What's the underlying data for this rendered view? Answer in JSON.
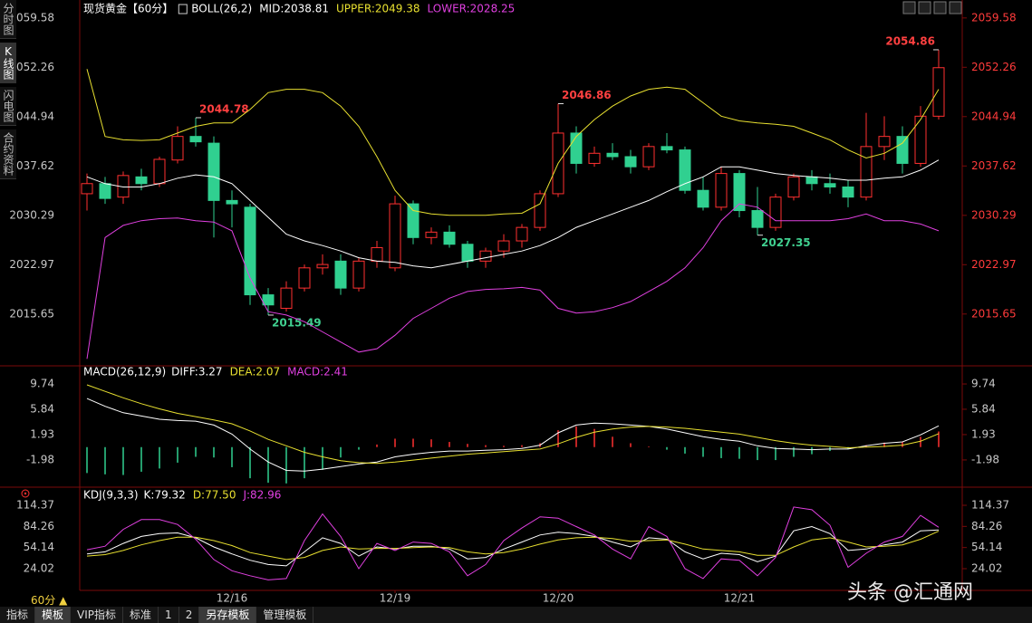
{
  "sidebar": [
    "分时图",
    "K线图",
    "闪电图",
    "合约资料"
  ],
  "period": "60分 ▲",
  "toolbar": [
    "指标",
    "模板",
    "VIP指标",
    "标准",
    "1",
    "2",
    "另存模板",
    "管理模板"
  ],
  "watermark": "头条 @汇通网",
  "chart_data": [
    {
      "type": "candlestick",
      "title": "现货黄金【60分】",
      "indicator": "BOLL(26,2)",
      "categories": [
        null,
        null,
        null,
        null,
        null,
        null,
        null,
        null,
        "12/16",
        null,
        null,
        null,
        null,
        null,
        null,
        null,
        null,
        "12/19",
        null,
        null,
        null,
        null,
        null,
        null,
        null,
        null,
        "12/20",
        null,
        null,
        null,
        null,
        null,
        null,
        null,
        null,
        null,
        "12/21",
        null,
        null,
        null,
        null,
        null,
        null,
        null,
        null,
        null,
        null,
        null
      ],
      "open": [
        2033.5,
        2035.0,
        2033.0,
        2036.0,
        2035.0,
        2038.5,
        2042.0,
        2041.0,
        2032.5,
        2031.5,
        2018.5,
        2016.5,
        2019.5,
        2022.5,
        2023.5,
        2019.5,
        2023.5,
        2022.5,
        2032.0,
        2027.0,
        2027.8,
        2026.0,
        2023.5,
        2025.0,
        2026.5,
        2028.5,
        2033.5,
        2042.5,
        2038.0,
        2039.5,
        2039.0,
        2037.5,
        2040.5,
        2040.0,
        2034.0,
        2031.5,
        2036.5,
        2031.0,
        2028.5,
        2033.0,
        2036.0,
        2035.0,
        2034.5,
        2033.0,
        2040.5,
        2042.0,
        2038.0,
        2045.0
      ],
      "high": [
        2036.5,
        2036.0,
        2036.8,
        2037.2,
        2039.0,
        2043.5,
        2044.78,
        2042.0,
        2034.0,
        2032.0,
        2019.5,
        2020.5,
        2023.0,
        2024.5,
        2024.5,
        2024.0,
        2026.5,
        2033.2,
        2032.5,
        2028.5,
        2028.8,
        2026.5,
        2025.5,
        2027.5,
        2029.0,
        2034.0,
        2046.86,
        2043.5,
        2040.5,
        2041.0,
        2040.0,
        2041.0,
        2042.5,
        2040.5,
        2036.0,
        2037.5,
        2037.0,
        2034.5,
        2033.5,
        2036.5,
        2037.0,
        2036.5,
        2035.5,
        2045.5,
        2045.0,
        2043.5,
        2046.5,
        2054.86
      ],
      "low": [
        2031.0,
        2032.0,
        2032.0,
        2034.0,
        2034.5,
        2038.0,
        2040.5,
        2027.0,
        2028.5,
        2017.0,
        2015.49,
        2016.0,
        2019.0,
        2021.5,
        2018.5,
        2019.0,
        2022.5,
        2022.0,
        2026.0,
        2026.0,
        2025.5,
        2022.5,
        2022.5,
        2024.0,
        2025.5,
        2028.0,
        2033.0,
        2036.5,
        2037.5,
        2038.5,
        2036.5,
        2037.0,
        2039.5,
        2033.5,
        2031.0,
        2031.0,
        2030.0,
        2027.35,
        2028.0,
        2032.5,
        2034.0,
        2033.5,
        2031.5,
        2032.5,
        2038.5,
        2036.5,
        2037.5,
        2044.5
      ],
      "close": [
        2035.0,
        2032.8,
        2036.2,
        2035.0,
        2038.6,
        2042.0,
        2041.2,
        2032.5,
        2032.0,
        2018.5,
        2017.0,
        2019.5,
        2022.5,
        2023.0,
        2019.5,
        2023.5,
        2025.5,
        2032.0,
        2027.0,
        2027.8,
        2026.0,
        2023.5,
        2025.0,
        2026.5,
        2028.5,
        2033.5,
        2042.5,
        2038.0,
        2039.5,
        2039.0,
        2037.5,
        2040.5,
        2040.0,
        2034.0,
        2031.5,
        2036.5,
        2031.0,
        2028.5,
        2033.0,
        2036.0,
        2035.0,
        2034.5,
        2033.0,
        2040.5,
        2042.0,
        2038.0,
        2045.0,
        2052.2
      ],
      "up_color": "#ff3030",
      "down_color": "#30d090",
      "series": [
        {
          "name": "MID:2038.81",
          "color": "#ffffff",
          "values": [
            2036.0,
            2035.0,
            2034.5,
            2034.5,
            2035.0,
            2035.8,
            2036.3,
            2036.0,
            2035.0,
            2032.5,
            2030.0,
            2027.5,
            2026.5,
            2025.8,
            2025.0,
            2024.0,
            2023.5,
            2023.3,
            2022.8,
            2022.5,
            2023.0,
            2023.5,
            2024.0,
            2024.5,
            2025.0,
            2025.8,
            2027.0,
            2028.5,
            2029.5,
            2030.5,
            2031.5,
            2032.5,
            2033.8,
            2035.0,
            2036.0,
            2037.5,
            2037.5,
            2037.0,
            2036.5,
            2036.2,
            2036.0,
            2035.8,
            2035.5,
            2035.5,
            2035.8,
            2036.0,
            2037.0,
            2038.5
          ]
        },
        {
          "name": "UPPER:2049.38",
          "color": "#e8e030",
          "values": [
            2052.0,
            2042.0,
            2041.5,
            2041.4,
            2041.5,
            2042.5,
            2043.5,
            2044.0,
            2044.0,
            2046.0,
            2048.5,
            2049.0,
            2049.0,
            2048.5,
            2046.5,
            2043.5,
            2039.0,
            2034.0,
            2031.0,
            2030.5,
            2030.3,
            2030.3,
            2030.3,
            2030.5,
            2030.6,
            2032.0,
            2038.0,
            2042.0,
            2044.5,
            2046.5,
            2048.0,
            2049.0,
            2049.3,
            2049.0,
            2047.0,
            2045.0,
            2044.3,
            2044.0,
            2043.8,
            2043.5,
            2042.5,
            2041.5,
            2040.0,
            2038.8,
            2039.5,
            2041.0,
            2044.5,
            2049.0
          ]
        },
        {
          "name": "LOWER:2028.25",
          "color": "#e040e0",
          "values": [
            2009.0,
            2027.0,
            2028.8,
            2029.5,
            2029.8,
            2029.9,
            2029.5,
            2029.3,
            2028.0,
            2021.0,
            2016.0,
            2015.5,
            2014.5,
            2013.0,
            2011.5,
            2010.0,
            2010.5,
            2012.5,
            2015.0,
            2016.5,
            2018.0,
            2019.0,
            2019.3,
            2019.4,
            2019.6,
            2019.2,
            2016.5,
            2015.8,
            2016.0,
            2016.6,
            2017.5,
            2019.0,
            2020.5,
            2022.5,
            2025.5,
            2029.5,
            2032.0,
            2031.5,
            2029.5,
            2029.5,
            2029.5,
            2029.5,
            2029.8,
            2030.5,
            2029.5,
            2029.5,
            2029.0,
            2028.0
          ]
        }
      ],
      "ylim": [
        2008.5,
        2060.9
      ],
      "yticks": [
        2059.58,
        2052.26,
        2044.94,
        2037.62,
        2030.29,
        2022.97,
        2015.65
      ]
    },
    {
      "type": "macd",
      "title": "MACD(26,12,9)",
      "series": [
        {
          "name": "DIFF:3.27",
          "color": "#ffffff",
          "values": [
            7.5,
            6.3,
            5.3,
            4.8,
            4.3,
            4.1,
            4.0,
            3.4,
            2.0,
            -0.3,
            -2.3,
            -3.6,
            -3.7,
            -3.4,
            -3.0,
            -2.6,
            -2.3,
            -1.5,
            -1.1,
            -0.8,
            -0.6,
            -0.6,
            -0.5,
            -0.4,
            -0.2,
            0.3,
            2.2,
            3.4,
            3.7,
            3.6,
            3.4,
            3.2,
            2.8,
            2.2,
            1.6,
            1.2,
            0.9,
            0.2,
            -0.2,
            -0.3,
            -0.4,
            -0.3,
            -0.3,
            0.2,
            0.6,
            0.8,
            1.9,
            3.27
          ]
        },
        {
          "name": "DEA:2.07",
          "color": "#e8e030",
          "values": [
            9.6,
            8.6,
            7.6,
            6.7,
            5.9,
            5.2,
            4.7,
            4.2,
            3.6,
            2.5,
            1.2,
            0.2,
            -0.8,
            -1.5,
            -2.1,
            -2.4,
            -2.5,
            -2.3,
            -2.0,
            -1.7,
            -1.4,
            -1.1,
            -0.9,
            -0.7,
            -0.5,
            -0.3,
            0.5,
            1.5,
            2.3,
            2.8,
            3.1,
            3.2,
            3.1,
            2.9,
            2.6,
            2.3,
            2.0,
            1.5,
            1.0,
            0.6,
            0.3,
            0.1,
            -0.1,
            0.0,
            0.1,
            0.3,
            0.9,
            2.07
          ]
        }
      ],
      "histogram": {
        "name": "MACD:2.41",
        "color": "#e040e0",
        "up_color": "#ff3030",
        "down_color": "#30d090",
        "values": [
          -4.0,
          -4.2,
          -4.3,
          -3.8,
          -3.3,
          -2.4,
          -1.5,
          -1.6,
          -3.1,
          -4.8,
          -5.5,
          -5.6,
          -4.8,
          -3.5,
          -1.6,
          -0.4,
          0.4,
          1.3,
          1.3,
          1.2,
          0.8,
          0.5,
          0.3,
          0.2,
          0.3,
          0.6,
          2.6,
          3.2,
          2.8,
          1.6,
          0.6,
          0.1,
          -0.4,
          -1.0,
          -1.5,
          -1.7,
          -1.8,
          -2.0,
          -2.0,
          -1.5,
          -1.1,
          -0.6,
          -0.3,
          0.3,
          0.7,
          0.8,
          1.6,
          2.41
        ]
      },
      "ylim": [
        -5.76,
        11.42
      ],
      "yticks": [
        9.74,
        5.84,
        1.93,
        -1.98
      ]
    },
    {
      "type": "line",
      "title": "KDJ(9,3,3)",
      "series": [
        {
          "name": "K:79.32",
          "color": "#ffffff",
          "values": [
            45,
            48,
            60,
            70,
            74,
            75,
            68,
            55,
            45,
            36,
            30,
            28,
            48,
            68,
            60,
            42,
            55,
            52,
            56,
            56,
            52,
            38,
            40,
            52,
            62,
            72,
            76,
            74,
            70,
            62,
            55,
            68,
            66,
            48,
            38,
            46,
            44,
            34,
            42,
            78,
            84,
            74,
            50,
            52,
            58,
            62,
            78,
            79.32
          ]
        },
        {
          "name": "D:77.50",
          "color": "#e8e030",
          "values": [
            42,
            44,
            50,
            58,
            64,
            69,
            69,
            64,
            57,
            47,
            42,
            37,
            40,
            50,
            55,
            52,
            53,
            53,
            54,
            55,
            54,
            48,
            45,
            47,
            52,
            59,
            65,
            68,
            69,
            67,
            63,
            64,
            65,
            59,
            52,
            50,
            48,
            43,
            43,
            55,
            65,
            68,
            62,
            55,
            56,
            58,
            66,
            77.5
          ]
        },
        {
          "name": "J:82.96",
          "color": "#e040e0",
          "values": [
            51,
            56,
            80,
            94,
            94,
            87,
            66,
            37,
            21,
            14,
            8,
            10,
            64,
            102,
            70,
            24,
            60,
            50,
            62,
            60,
            48,
            14,
            30,
            64,
            82,
            98,
            96,
            84,
            72,
            52,
            38,
            84,
            70,
            24,
            10,
            38,
            36,
            14,
            40,
            112,
            108,
            86,
            26,
            46,
            62,
            70,
            100,
            82.96
          ]
        }
      ],
      "ylim": [
        -1.8,
        127.3
      ],
      "yticks": [
        114.37,
        84.26,
        54.14,
        24.02
      ]
    }
  ]
}
